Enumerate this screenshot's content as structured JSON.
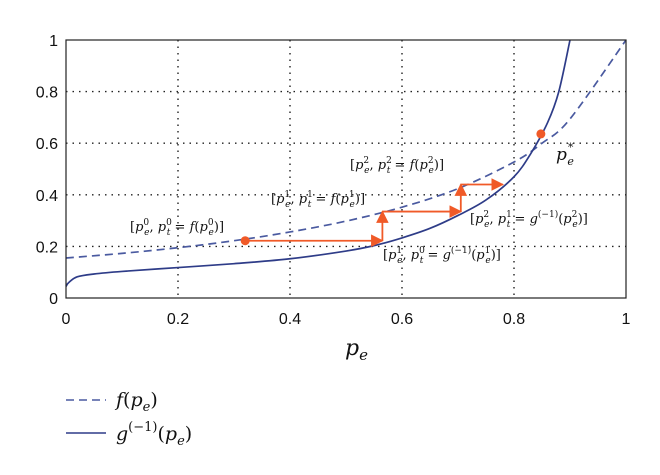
{
  "chart_data": {
    "type": "line",
    "xlabel": "p_e",
    "xlim": [
      0,
      1
    ],
    "ylim": [
      0,
      1
    ],
    "x_ticks": [
      "0",
      "0.2",
      "0.4",
      "0.6",
      "0.8",
      "1"
    ],
    "y_ticks": [
      "0",
      "0.2",
      "0.4",
      "0.6",
      "0.8",
      "1"
    ],
    "grid": true,
    "legend_placement": "below",
    "series": [
      {
        "name": "f(p_e)",
        "style": "dashed",
        "color": "#4a5aa0",
        "x": [
          0,
          0.1,
          0.2,
          0.3,
          0.4,
          0.5,
          0.6,
          0.7,
          0.8,
          0.85,
          0.9,
          1.0
        ],
        "y": [
          0.155,
          0.173,
          0.195,
          0.222,
          0.256,
          0.298,
          0.352,
          0.424,
          0.527,
          0.6,
          0.694,
          1.0
        ]
      },
      {
        "name": "g^(-1)(p_e)",
        "style": "solid",
        "color": "#2e3c88",
        "x": [
          0,
          0.005,
          0.02,
          0.05,
          0.1,
          0.2,
          0.3,
          0.4,
          0.5,
          0.55,
          0.6,
          0.65,
          0.7,
          0.75,
          0.8,
          0.83,
          0.86,
          0.88,
          0.9
        ],
        "y": [
          0.045,
          0.06,
          0.082,
          0.093,
          0.103,
          0.118,
          0.133,
          0.152,
          0.182,
          0.203,
          0.233,
          0.27,
          0.32,
          0.38,
          0.47,
          0.56,
          0.68,
          0.8,
          1.0
        ]
      }
    ],
    "iteration_path": [
      [
        0.32,
        0.222
      ],
      [
        0.565,
        0.222
      ],
      [
        0.565,
        0.335
      ],
      [
        0.705,
        0.335
      ],
      [
        0.705,
        0.44
      ],
      [
        0.78,
        0.44
      ]
    ],
    "arrow_color": "#f05a28",
    "points": [
      {
        "x": 0.32,
        "y": 0.222
      },
      {
        "x": 0.848,
        "y": 0.636
      }
    ],
    "annotations": {
      "p0": "[p_e^0, p_t^0 = f(p_e^0)]",
      "p1": "[p_e^1, p_t^0 = g^(-1)(p_e^1)]",
      "p2": "[p_e^1, p_t^1 = f(p_e^1)]",
      "p3": "[p_e^2, p_t^1 = g^(-1)(p_e^2)]",
      "p4": "[p_e^2, p_t^2 = f(p_e^2)]",
      "fixed_point": "p_e^*"
    }
  }
}
